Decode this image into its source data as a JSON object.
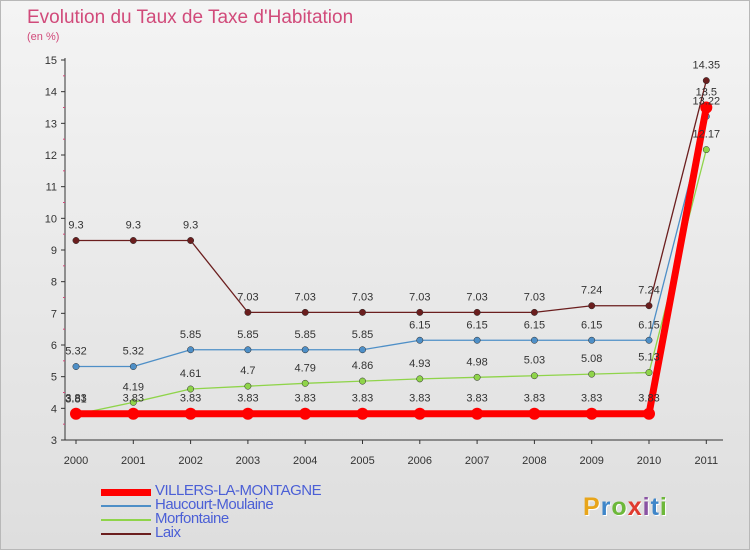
{
  "title": "Evolution du Taux de Taxe d'Habitation",
  "subtitle": "(en %)",
  "logo": {
    "letters": [
      "P",
      "r",
      "o",
      "x",
      "i",
      "t",
      "i"
    ],
    "colors": [
      "#e8a51a",
      "#3f86c9",
      "#6db83a",
      "#e03a2e",
      "#8a53a3",
      "#3f86c9",
      "#6db83a"
    ]
  },
  "chart_data": {
    "type": "line",
    "categories": [
      "2000",
      "2001",
      "2002",
      "2003",
      "2004",
      "2005",
      "2006",
      "2007",
      "2008",
      "2009",
      "2010",
      "2011"
    ],
    "ylim": [
      3,
      15
    ],
    "yticks": [
      "3",
      "4",
      "5",
      "6",
      "7",
      "8",
      "9",
      "10",
      "11",
      "12",
      "13",
      "14",
      "15"
    ],
    "grid": false,
    "legend_position": "bottom-left",
    "series": [
      {
        "name": "Laix",
        "color": "#6b1e1e",
        "values": [
          9.3,
          9.3,
          9.3,
          7.03,
          7.03,
          7.03,
          7.03,
          7.03,
          7.03,
          7.24,
          7.24,
          14.35
        ],
        "labels": [
          "9.3",
          "9.3",
          "9.3",
          "7.03",
          "7.03",
          "7.03",
          "7.03",
          "7.03",
          "7.03",
          "7.24",
          "7.24",
          "14.35"
        ]
      },
      {
        "name": "Haucourt-Moulaine",
        "color": "#4e8fc7",
        "values": [
          5.32,
          5.32,
          5.85,
          5.85,
          5.85,
          5.85,
          6.15,
          6.15,
          6.15,
          6.15,
          6.15,
          13.22
        ],
        "labels": [
          "5.32",
          "5.32",
          "5.85",
          "5.85",
          "5.85",
          "5.85",
          "6.15",
          "6.15",
          "6.15",
          "6.15",
          "6.15",
          "13.22"
        ]
      },
      {
        "name": "Morfontaine",
        "color": "#8fd44a",
        "values": [
          3.81,
          4.19,
          4.61,
          4.7,
          4.79,
          4.86,
          4.93,
          4.98,
          5.03,
          5.08,
          5.13,
          12.17
        ],
        "labels": [
          "3.81",
          "4.19",
          "4.61",
          "4.7",
          "4.79",
          "4.86",
          "4.93",
          "4.98",
          "5.03",
          "5.08",
          "5.13",
          "12.17"
        ]
      },
      {
        "name": "VILLERS-LA-MONTAGNE",
        "color": "#ff0000",
        "values": [
          3.83,
          3.83,
          3.83,
          3.83,
          3.83,
          3.83,
          3.83,
          3.83,
          3.83,
          3.83,
          3.83,
          13.5
        ],
        "labels": [
          "3.83",
          "3.83",
          "3.83",
          "3.83",
          "3.83",
          "3.83",
          "3.83",
          "3.83",
          "3.83",
          "3.83",
          "3.83",
          "13.5"
        ]
      }
    ],
    "legend_order": [
      "VILLERS-LA-MONTAGNE",
      "Haucourt-Moulaine",
      "Morfontaine",
      "Laix"
    ]
  }
}
